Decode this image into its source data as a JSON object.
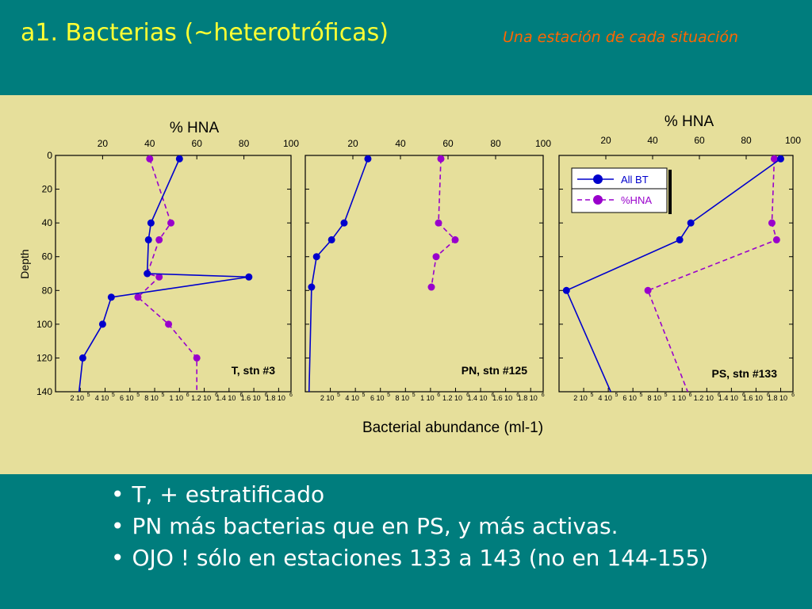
{
  "header": {
    "title": "a1. Bacterias (~heterotróficas)",
    "subtitle": "Una estación de cada situación"
  },
  "colors": {
    "teal": "#007d7d",
    "panel": "#e6df9b",
    "bt": "#0000cc",
    "hna": "#9900cc",
    "title": "#ffff33",
    "subtitle": "#ff6600"
  },
  "chart_data": {
    "type": "line",
    "ylabel": "Depth",
    "xlabel": "Bacterial abundance (ml-1)",
    "top_axis_label": "% HNA",
    "ylim": [
      140,
      0
    ],
    "yticks": [
      0,
      20,
      40,
      60,
      80,
      100,
      120,
      140
    ],
    "hna_ticks": [
      20,
      40,
      60,
      80,
      100
    ],
    "hna_range": [
      0,
      100
    ],
    "bt_range": [
      0,
      1900000
    ],
    "bt_tick_values": [
      200000,
      400000,
      600000,
      800000,
      1000000,
      1200000,
      1400000,
      1600000,
      1800000
    ],
    "bt_tick_labels": [
      [
        "2 10",
        "5"
      ],
      [
        "4 10",
        "5"
      ],
      [
        "6 10",
        "5"
      ],
      [
        "8 10",
        "5"
      ],
      [
        "1 10",
        "6"
      ],
      [
        "1.2 10",
        "6"
      ],
      [
        "1.4 10",
        "6"
      ],
      [
        "1.6 10",
        "6"
      ],
      [
        "1.8 10",
        "6"
      ]
    ],
    "legend": [
      {
        "name": "All BT",
        "style": "solid"
      },
      {
        "name": "%HNA",
        "style": "dashed"
      }
    ],
    "panels": [
      {
        "name": "T, stn #3",
        "show_hna_label": true,
        "all_bt": {
          "depth": [
            2,
            40,
            50,
            70,
            72,
            84,
            100,
            120,
            140
          ],
          "value": [
            1000000,
            770000,
            750000,
            740000,
            1560000,
            450000,
            380000,
            220000,
            190000
          ]
        },
        "hna": {
          "depth": [
            2,
            40,
            50,
            70,
            72,
            84,
            100,
            120,
            140
          ],
          "value": [
            40,
            49,
            44,
            39,
            44,
            35,
            48,
            60,
            60
          ]
        }
      },
      {
        "name": "PN, stn #125",
        "show_hna_label": false,
        "all_bt": {
          "depth": [
            2,
            40,
            50,
            60,
            78,
            140
          ],
          "value": [
            500000,
            310000,
            210000,
            90000,
            50000,
            30000
          ]
        },
        "hna": {
          "depth": [
            2,
            40,
            50,
            60,
            78
          ],
          "value": [
            57,
            56,
            63,
            55,
            53
          ]
        }
      },
      {
        "name": "PS, stn #133",
        "show_hna_label": true,
        "all_bt": {
          "depth": [
            2,
            40,
            50,
            80,
            140
          ],
          "value": [
            1800000,
            1070000,
            980000,
            60000,
            420000
          ]
        },
        "hna": {
          "depth": [
            2,
            40,
            50,
            80,
            140
          ],
          "value": [
            92,
            91,
            93,
            38,
            55
          ]
        }
      }
    ]
  },
  "bullets": [
    "T, + estratificado",
    "PN más bacterias que en PS, y más activas.",
    "OJO ! sólo en estaciones 133 a 143 (no en 144-155)"
  ]
}
